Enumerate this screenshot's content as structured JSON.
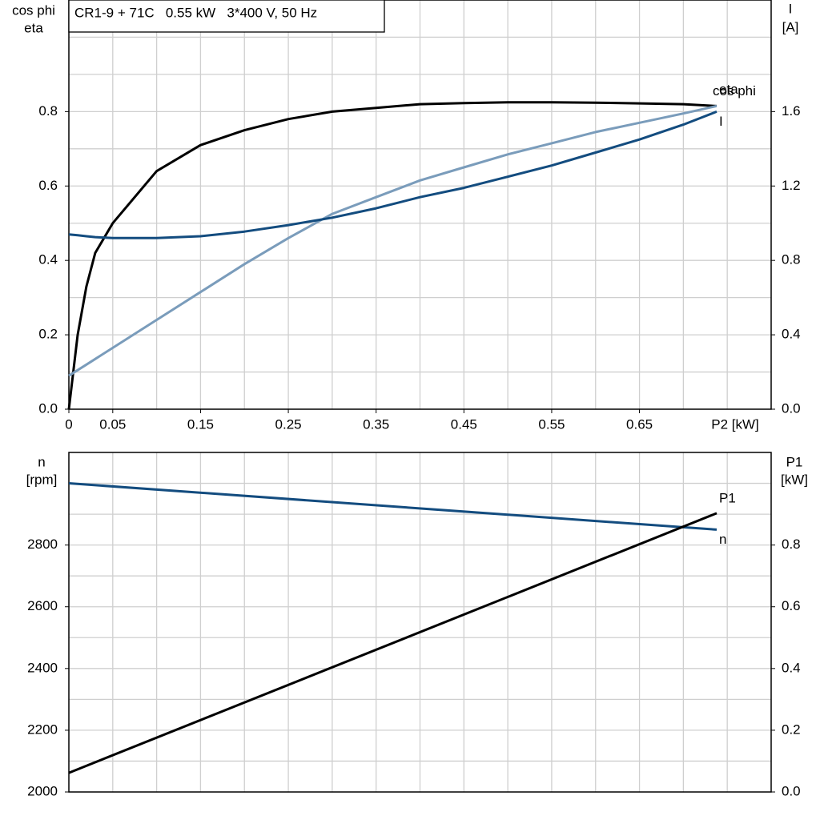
{
  "chart_data": [
    {
      "type": "line",
      "title": "CR1-9 + 71C   0.55 kW   3*400 V, 50 Hz",
      "y_label": [
        "cos phi",
        "eta"
      ],
      "y2_label": [
        "I",
        "[A]"
      ],
      "x_label": "P2 [kW]",
      "xlim": [
        0,
        0.8
      ],
      "xticks": [
        {
          "value": 0,
          "label": "0"
        },
        0.05,
        0.15,
        0.25,
        0.35,
        0.45,
        0.55,
        0.65
      ],
      "xgrid": [
        0.05,
        0.1,
        0.15,
        0.2,
        0.25,
        0.3,
        0.35,
        0.4,
        0.45,
        0.5,
        0.55,
        0.6,
        0.65,
        0.7,
        0.75
      ],
      "ylim": [
        0,
        1.1
      ],
      "yticks": [
        {
          "value": 0,
          "label": "0.0"
        },
        0.2,
        0.4,
        0.6,
        0.8
      ],
      "ygrid": [
        0.1,
        0.2,
        0.3,
        0.4,
        0.5,
        0.6,
        0.7,
        0.8,
        0.9,
        1.0
      ],
      "y2lim": [
        0,
        2.2
      ],
      "y2ticks": [
        {
          "value": 0,
          "label": "0.0"
        },
        0.4,
        0.8,
        1.2,
        1.6
      ],
      "grid": true,
      "x": [
        0,
        0.01,
        0.02,
        0.03,
        0.05,
        0.1,
        0.15,
        0.2,
        0.25,
        0.3,
        0.35,
        0.4,
        0.45,
        0.5,
        0.55,
        0.6,
        0.65,
        0.7,
        0.738
      ],
      "series": [
        {
          "name": "eta",
          "color": "#000000",
          "values": [
            0,
            0.2,
            0.33,
            0.42,
            0.5,
            0.64,
            0.71,
            0.75,
            0.78,
            0.8,
            0.81,
            0.82,
            0.823,
            0.825,
            0.825,
            0.824,
            0.822,
            0.82,
            0.815
          ]
        },
        {
          "name": "cos phi",
          "color": "#7a9cbb",
          "values": [
            0.09,
            0.105,
            0.12,
            0.135,
            0.165,
            0.24,
            0.315,
            0.39,
            0.46,
            0.525,
            0.57,
            0.615,
            0.65,
            0.685,
            0.715,
            0.745,
            0.77,
            0.795,
            0.815
          ]
        },
        {
          "name": "I",
          "color": "#134c7f",
          "axis": "y2",
          "values": [
            0.94,
            0.935,
            0.93,
            0.925,
            0.92,
            0.92,
            0.93,
            0.955,
            0.99,
            1.03,
            1.08,
            1.14,
            1.19,
            1.25,
            1.31,
            1.38,
            1.45,
            1.53,
            1.6
          ]
        }
      ]
    },
    {
      "type": "line",
      "y_label": [
        "n",
        "[rpm]"
      ],
      "y2_label": [
        "P1",
        "[kW]"
      ],
      "xlim": [
        0,
        0.8
      ],
      "xgrid": [
        0.05,
        0.1,
        0.15,
        0.2,
        0.25,
        0.3,
        0.35,
        0.4,
        0.45,
        0.5,
        0.55,
        0.6,
        0.65,
        0.7,
        0.75
      ],
      "ylim": [
        2000,
        3100
      ],
      "yticks": [
        2000,
        2200,
        2400,
        2600,
        2800
      ],
      "ygrid": [
        2100,
        2200,
        2300,
        2400,
        2500,
        2600,
        2700,
        2800,
        2900,
        3000
      ],
      "y2lim": [
        0,
        1.1
      ],
      "y2ticks": [
        {
          "value": 0,
          "label": "0.0"
        },
        0.2,
        0.4,
        0.6,
        0.8
      ],
      "grid": true,
      "x": [
        0,
        0.738
      ],
      "series": [
        {
          "name": "n",
          "color": "#134c7f",
          "values": [
            3000,
            2850
          ]
        },
        {
          "name": "P1",
          "color": "#000000",
          "axis": "y2",
          "values": [
            0.062,
            0.903
          ]
        }
      ]
    }
  ]
}
